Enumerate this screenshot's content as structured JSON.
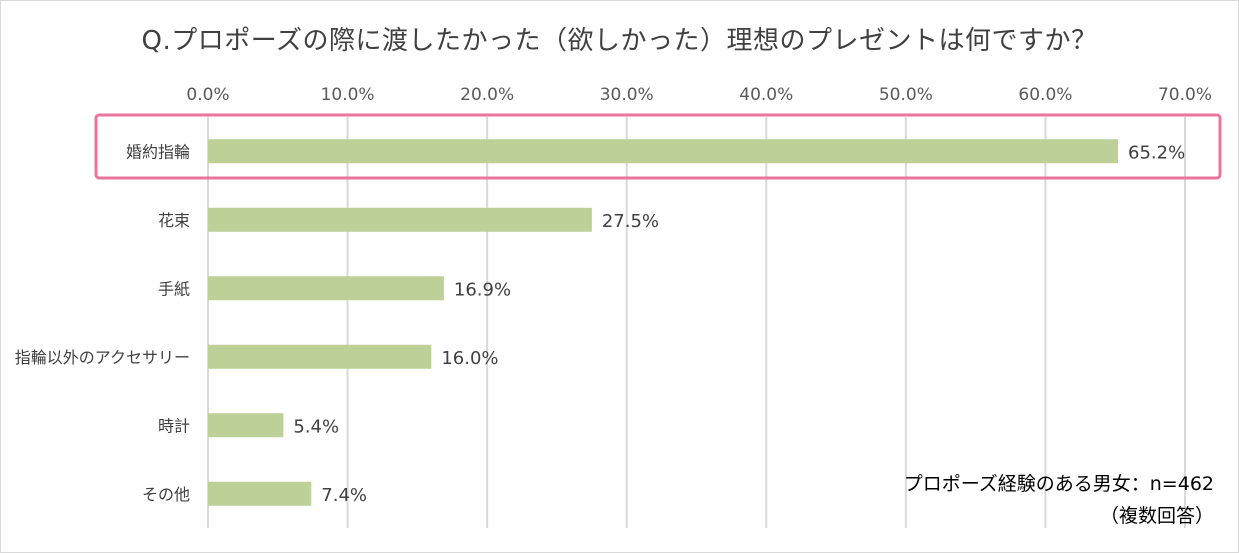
{
  "chart_data": {
    "type": "bar",
    "orientation": "horizontal",
    "title": "Q.プロポーズの際に渡したかった（欲しかった）理想のプレゼントは何ですか？",
    "categories": [
      "婚約指輪",
      "花束",
      "手紙",
      "指輪以外のアクセサリー",
      "時計",
      "その他"
    ],
    "values": [
      65.2,
      27.5,
      16.9,
      16.0,
      5.4,
      7.4
    ],
    "value_labels": [
      "65.2%",
      "27.5%",
      "16.9%",
      "16.0%",
      "5.4%",
      "7.4%"
    ],
    "xlim": [
      0,
      70
    ],
    "x_ticks": [
      "0.0%",
      "10.0%",
      "20.0%",
      "30.0%",
      "40.0%",
      "50.0%",
      "60.0%",
      "70.0%"
    ],
    "x_tick_values": [
      0,
      10,
      20,
      30,
      40,
      50,
      60,
      70
    ],
    "axis_position": "top",
    "grid": true,
    "highlighted_category": "婚約指輪",
    "bar_color": "#bcd097",
    "highlight_color": "#e8769b",
    "grid_color": "#d9d9d9",
    "note_line1": "プロポーズ経験のある男女：n=462",
    "note_line2": "（複数回答）"
  }
}
